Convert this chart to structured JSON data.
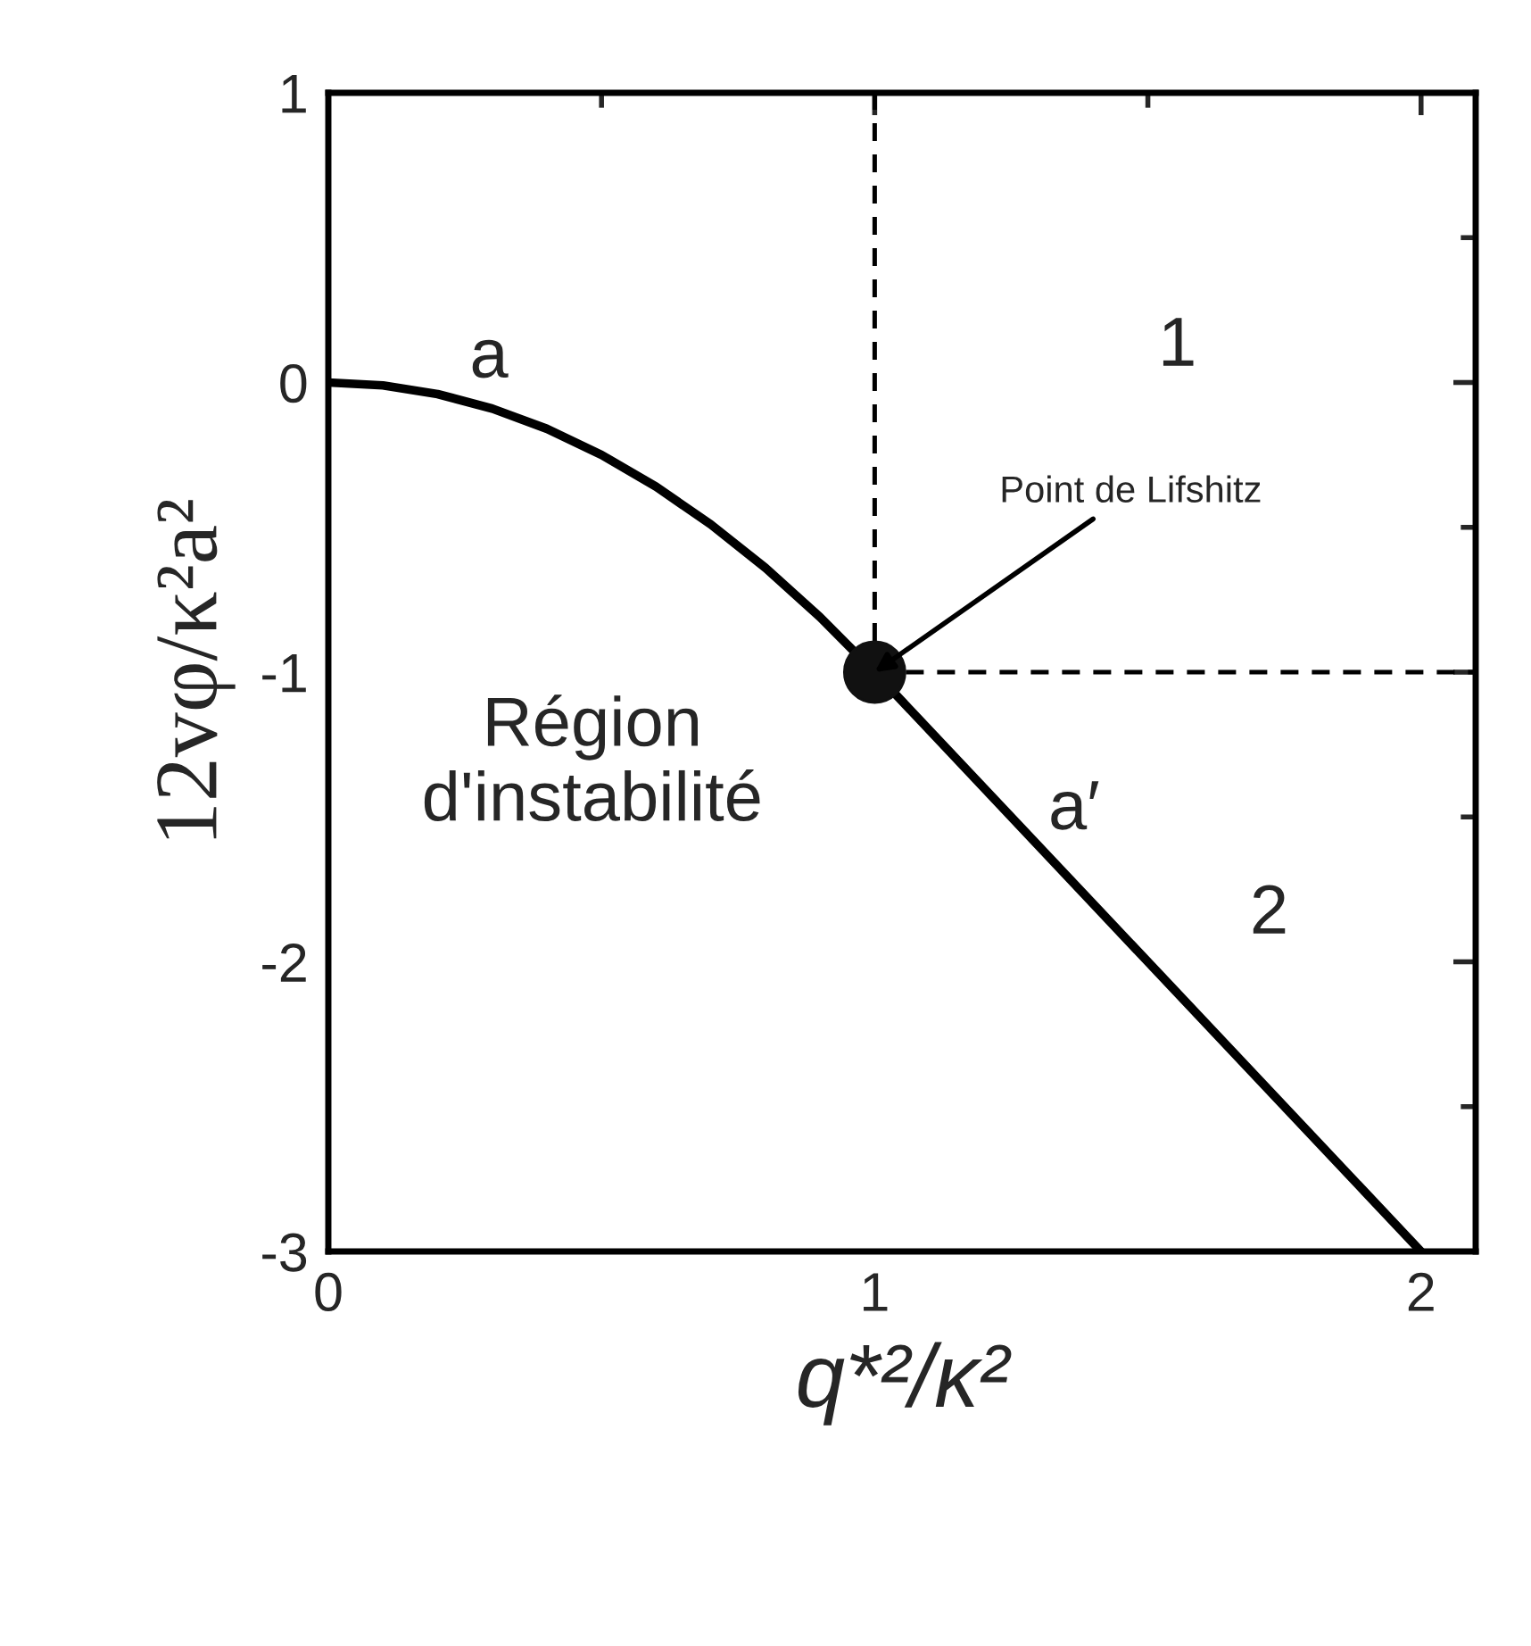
{
  "chart_data": {
    "type": "line",
    "xlabel": "q*²/κ²",
    "ylabel": "12vφ/κ²a²",
    "xlim": [
      0,
      2.1
    ],
    "xticks": [
      0,
      1,
      2
    ],
    "ylim": [
      -3,
      1
    ],
    "yticks": [
      -3,
      -2,
      -1,
      0,
      1
    ],
    "grid": false,
    "series": [
      {
        "color": "#000000",
        "marker": "none",
        "line_style": "solid",
        "x": [
          0,
          0.1,
          0.2,
          0.3,
          0.4,
          0.5,
          0.6,
          0.7,
          0.8,
          0.9,
          1,
          2
        ],
        "values": [
          0,
          -0.01,
          -0.04,
          -0.09,
          -0.16,
          -0.25,
          -0.36,
          -0.49,
          -0.64,
          -0.81,
          -1,
          -3
        ]
      },
      {
        "type": "scatter",
        "color": "#111111",
        "marker": "circle",
        "x": [
          1
        ],
        "values": [
          -1
        ]
      }
    ],
    "ref_lines": [
      {
        "axis": "x",
        "value": 1,
        "line_style": "dashed",
        "color": "#000000"
      },
      {
        "axis": "y",
        "value": -1,
        "line_style": "dashed",
        "color": "#000000"
      }
    ],
    "annotations": [
      {
        "text": "Point de Lifshitz",
        "x": 1,
        "y": -1
      },
      "a",
      "a′",
      "1",
      "2",
      "Région\nd'instabilité"
    ]
  }
}
